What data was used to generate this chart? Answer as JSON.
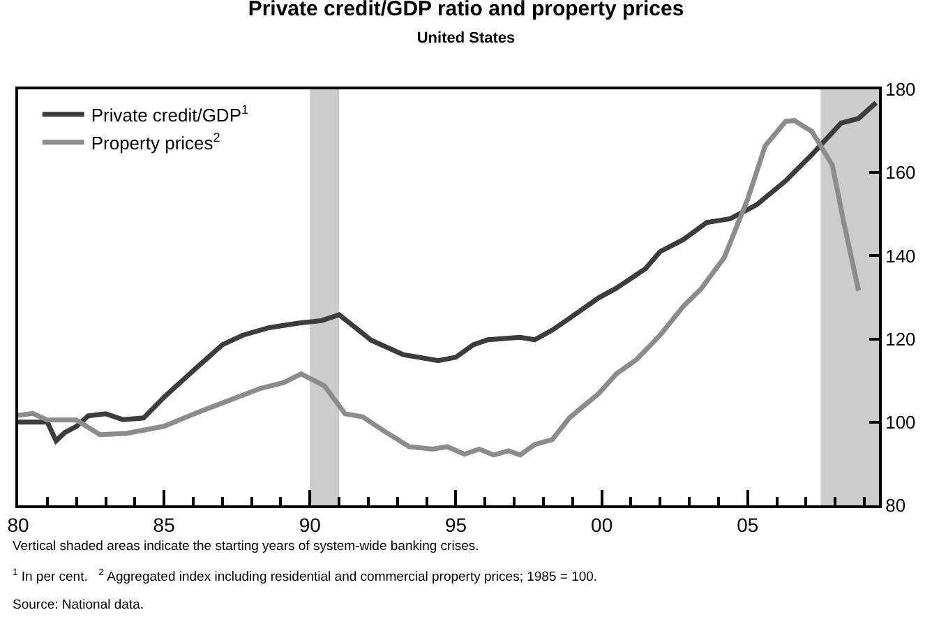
{
  "chart_data": {
    "type": "line",
    "title": "Private credit/GDP ratio and property prices",
    "subtitle": "United States",
    "series": [
      {
        "name": "Private credit/GDP$^{1}$",
        "color": "#3c3c3c",
        "x": [
          1980,
          1981,
          1981.3,
          1981.6,
          1982,
          1982.4,
          1983,
          1983.6,
          1984.3,
          1985,
          1986.1,
          1987,
          1987.7,
          1988.6,
          1989.6,
          1990.4,
          1991,
          1992.1,
          1993.2,
          1994.4,
          1995,
          1995.6,
          1996.1,
          1997.2,
          1997.7,
          1998.3,
          1998.9,
          1999.9,
          2000.5,
          2001.5,
          2002,
          2002.8,
          2003.6,
          2004.4,
          2005.3,
          2006.3,
          2007.2,
          2008.2,
          2008.8,
          2009.4
        ],
        "values": [
          100,
          100,
          95.5,
          97.5,
          99,
          101.5,
          102,
          100.6,
          101,
          106,
          113,
          118.6,
          120.9,
          122.7,
          123.8,
          124.4,
          125.8,
          119.7,
          116.2,
          114.8,
          115.6,
          118.6,
          119.8,
          120.4,
          119.8,
          122.1,
          125,
          129.9,
          132.2,
          136.9,
          141,
          143.9,
          148,
          148.9,
          152.2,
          158,
          164.3,
          171.9,
          173,
          176.8
        ]
      },
      {
        "name": "Property prices$^{2}$",
        "color": "#8c8c8c",
        "x": [
          1980,
          1980.5,
          1981,
          1982,
          1982.8,
          1983.7,
          1985,
          1986.1,
          1987,
          1988.3,
          1989.1,
          1989.7,
          1990.5,
          1991.2,
          1991.8,
          1992.6,
          1993.4,
          1994.2,
          1994.7,
          1995.3,
          1995.8,
          1996.3,
          1996.8,
          1997.2,
          1997.7,
          1998.3,
          1998.9,
          1999.9,
          2000.5,
          2001.2,
          2002,
          2002.8,
          2003.4,
          2004.2,
          2005,
          2005.6,
          2006.3,
          2006.6,
          2007.2,
          2007.9,
          2008.3,
          2008.8
        ],
        "values": [
          101.6,
          102.1,
          100.5,
          100.5,
          97,
          97.3,
          99,
          102.2,
          104.6,
          108.1,
          109.5,
          111.6,
          108.7,
          102,
          101.3,
          97.6,
          94.1,
          93.5,
          94.1,
          92.3,
          93.5,
          92.1,
          93.1,
          92.1,
          94.6,
          95.8,
          101.1,
          106.9,
          111.6,
          115.1,
          120.9,
          127.9,
          132,
          139.6,
          153.6,
          166.4,
          172.3,
          172.5,
          169.9,
          161.8,
          147.8,
          131.6
        ]
      }
    ],
    "xlim": [
      1980,
      2009.5
    ],
    "xticks": [
      {
        "value": 1980,
        "label": "80"
      },
      {
        "value": 1981,
        "label": null
      },
      {
        "value": 1982,
        "label": null
      },
      {
        "value": 1983,
        "label": null
      },
      {
        "value": 1984,
        "label": null
      },
      {
        "value": 1985,
        "label": "85"
      },
      {
        "value": 1986,
        "label": null
      },
      {
        "value": 1987,
        "label": null
      },
      {
        "value": 1988,
        "label": null
      },
      {
        "value": 1989,
        "label": null
      },
      {
        "value": 1990,
        "label": "90"
      },
      {
        "value": 1991,
        "label": null
      },
      {
        "value": 1992,
        "label": null
      },
      {
        "value": 1993,
        "label": null
      },
      {
        "value": 1994,
        "label": null
      },
      {
        "value": 1995,
        "label": "95"
      },
      {
        "value": 1996,
        "label": null
      },
      {
        "value": 1997,
        "label": null
      },
      {
        "value": 1998,
        "label": null
      },
      {
        "value": 1999,
        "label": null
      },
      {
        "value": 2000,
        "label": "00"
      },
      {
        "value": 2001,
        "label": null
      },
      {
        "value": 2002,
        "label": null
      },
      {
        "value": 2003,
        "label": null
      },
      {
        "value": 2004,
        "label": null
      },
      {
        "value": 2005,
        "label": "05"
      },
      {
        "value": 2006,
        "label": null
      },
      {
        "value": 2007,
        "label": null
      },
      {
        "value": 2008,
        "label": null
      },
      {
        "value": 2009,
        "label": null
      }
    ],
    "ylim": [
      80,
      180
    ],
    "yticks": [
      80,
      100,
      120,
      140,
      160,
      180
    ],
    "bands": [
      {
        "axis": "x",
        "from": 1990,
        "to": 1991,
        "color": "#cccccc"
      },
      {
        "axis": "x",
        "from": 2007.5,
        "to": 2009.5,
        "color": "#cccccc"
      }
    ],
    "annotations": [
      "Vertical shaded areas indicate the starting years of system-wide banking crises.",
      "$^{1}$ In per cent.   $^{2}$ Aggregated index including residential and commercial property prices; 1985 = 100.",
      "Source: National data."
    ],
    "legend": "top left",
    "grid": false,
    "marker": "none",
    "line_style": "solid"
  }
}
